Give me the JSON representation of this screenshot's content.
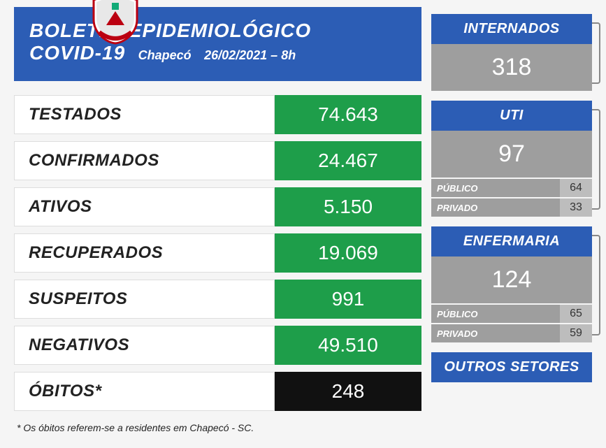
{
  "header": {
    "title_line1": "BOLETIM EPIDEMIOLÓGICO",
    "title_line2": "COVID-19",
    "city": "Chapecó",
    "datetime": "26/02/2021 – 8h"
  },
  "stats": [
    {
      "label": "TESTADOS",
      "value": "74.643",
      "color": "green"
    },
    {
      "label": "CONFIRMADOS",
      "value": "24.467",
      "color": "green"
    },
    {
      "label": "ATIVOS",
      "value": "5.150",
      "color": "green"
    },
    {
      "label": "RECUPERADOS",
      "value": "19.069",
      "color": "green"
    },
    {
      "label": "SUSPEITOS",
      "value": "991",
      "color": "green"
    },
    {
      "label": "NEGATIVOS",
      "value": "49.510",
      "color": "green"
    },
    {
      "label": "ÓBITOS*",
      "value": "248",
      "color": "black"
    }
  ],
  "footnote": "* Os óbitos referem-se a residentes em Chapecó - SC.",
  "side": {
    "internados": {
      "title": "INTERNADOS",
      "value": "318"
    },
    "uti": {
      "title": "UTI",
      "value": "97",
      "breakdown": [
        {
          "label": "PÚBLICO",
          "value": "64"
        },
        {
          "label": "PRIVADO",
          "value": "33"
        }
      ]
    },
    "enfermaria": {
      "title": "ENFERMARIA",
      "value": "124",
      "breakdown": [
        {
          "label": "PÚBLICO",
          "value": "65"
        },
        {
          "label": "PRIVADO",
          "value": "59"
        }
      ]
    },
    "outros": {
      "title": "OUTROS SETORES"
    }
  },
  "colors": {
    "blue": "#2c5db5",
    "green": "#1e9e4a",
    "black": "#111111",
    "gray": "#9e9e9e",
    "gray_light": "#bdbdbd",
    "bg": "#f5f5f5"
  }
}
